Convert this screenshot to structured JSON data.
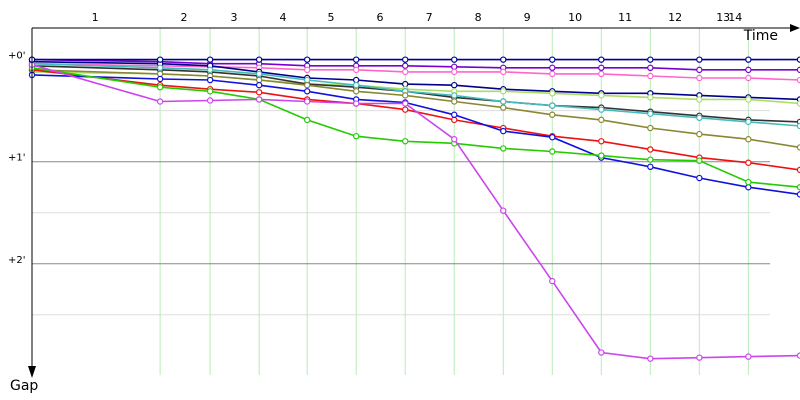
{
  "chart_data": {
    "type": "line",
    "x_label": "Time",
    "y_label": "Gap",
    "xlim": [
      0,
      23.5
    ],
    "ylim": [
      -0.31,
      3.09
    ],
    "y_inverted": true,
    "xticks": [
      {
        "value": 1.93,
        "label": "1"
      },
      {
        "value": 4.65,
        "label": "2"
      },
      {
        "value": 6.18,
        "label": "3"
      },
      {
        "value": 7.68,
        "label": "4"
      },
      {
        "value": 9.15,
        "label": "5"
      },
      {
        "value": 10.65,
        "label": "6"
      },
      {
        "value": 12.15,
        "label": "7"
      },
      {
        "value": 13.65,
        "label": "8"
      },
      {
        "value": 15.15,
        "label": "9"
      },
      {
        "value": 16.62,
        "label": "10"
      },
      {
        "value": 18.15,
        "label": "11"
      },
      {
        "value": 19.68,
        "label": "12"
      },
      {
        "value": 21.15,
        "label": "13"
      },
      {
        "value": 21.52,
        "label": "14"
      }
    ],
    "lap_lines": [
      3.92,
      5.45,
      6.95,
      8.42,
      9.92,
      11.42,
      12.92,
      14.42,
      15.92,
      17.42,
      18.92,
      20.42,
      21.92
    ],
    "lap_line_color": "#b8ecb8",
    "yticks": [
      {
        "value": 0,
        "label": "+0'"
      },
      {
        "value": 1,
        "label": "+1'"
      },
      {
        "value": 2,
        "label": "+2'"
      }
    ],
    "y_minor_grid": [
      0.5,
      1.5,
      2.5
    ],
    "grid": true,
    "x": [
      0,
      3.92,
      5.45,
      6.95,
      8.42,
      9.92,
      11.42,
      12.92,
      14.42,
      15.92,
      17.42,
      18.92,
      20.42,
      21.92,
      23.5
    ],
    "series": [
      {
        "color": "#7700cc",
        "values": [
          0,
          0.02,
          0.04,
          0.04,
          0.06,
          0.06,
          0.06,
          0.07,
          0.08,
          0.08,
          0.08,
          0.08,
          0.1,
          0.1,
          0.1
        ]
      },
      {
        "color": "#ff66cc",
        "values": [
          0.04,
          0.06,
          0.07,
          0.08,
          0.1,
          0.1,
          0.12,
          0.12,
          0.12,
          0.14,
          0.14,
          0.16,
          0.18,
          0.18,
          0.2
        ]
      },
      {
        "color": "#000088",
        "values": [
          0.02,
          0.04,
          0.06,
          0.12,
          0.18,
          0.2,
          0.24,
          0.25,
          0.29,
          0.31,
          0.33,
          0.33,
          0.35,
          0.37,
          0.39
        ]
      },
      {
        "color": "#aadd66",
        "values": [
          0.12,
          0.14,
          0.16,
          0.2,
          0.24,
          0.25,
          0.29,
          0.31,
          0.31,
          0.33,
          0.35,
          0.37,
          0.39,
          0.39,
          0.43
        ]
      },
      {
        "color": "#333333",
        "values": [
          0.06,
          0.1,
          0.12,
          0.16,
          0.24,
          0.27,
          0.31,
          0.37,
          0.41,
          0.45,
          0.47,
          0.51,
          0.55,
          0.59,
          0.61
        ]
      },
      {
        "color": "#44bbbb",
        "values": [
          0.04,
          0.08,
          0.1,
          0.14,
          0.2,
          0.25,
          0.31,
          0.35,
          0.41,
          0.45,
          0.49,
          0.53,
          0.57,
          0.61,
          0.65
        ]
      },
      {
        "color": "#888833",
        "values": [
          0.1,
          0.14,
          0.16,
          0.2,
          0.25,
          0.31,
          0.35,
          0.41,
          0.47,
          0.54,
          0.59,
          0.67,
          0.73,
          0.78,
          0.86
        ]
      },
      {
        "color": "#ee1111",
        "values": [
          0.1,
          0.25,
          0.29,
          0.32,
          0.39,
          0.43,
          0.49,
          0.59,
          0.67,
          0.75,
          0.8,
          0.88,
          0.96,
          1.01,
          1.08
        ]
      },
      {
        "color": "#1111dd",
        "values": [
          0.15,
          0.19,
          0.2,
          0.25,
          0.31,
          0.39,
          0.42,
          0.54,
          0.7,
          0.76,
          0.96,
          1.05,
          1.16,
          1.25,
          1.32
        ]
      },
      {
        "color": "#22cc00",
        "values": [
          0.08,
          0.27,
          0.31,
          0.39,
          0.59,
          0.75,
          0.8,
          0.82,
          0.87,
          0.9,
          0.94,
          0.98,
          0.99,
          1.2,
          1.25
        ]
      },
      {
        "color": "#cc44ee",
        "values": [
          0.05,
          0.41,
          0.4,
          0.39,
          0.41,
          0.43,
          0.43,
          0.78,
          1.48,
          2.17,
          2.87,
          2.93,
          2.92,
          2.91,
          2.9
        ]
      },
      {
        "color": "#000099",
        "values": [
          0,
          0,
          0,
          0,
          0,
          0,
          0,
          0,
          0,
          0,
          0,
          0,
          0,
          0,
          0
        ]
      }
    ]
  }
}
